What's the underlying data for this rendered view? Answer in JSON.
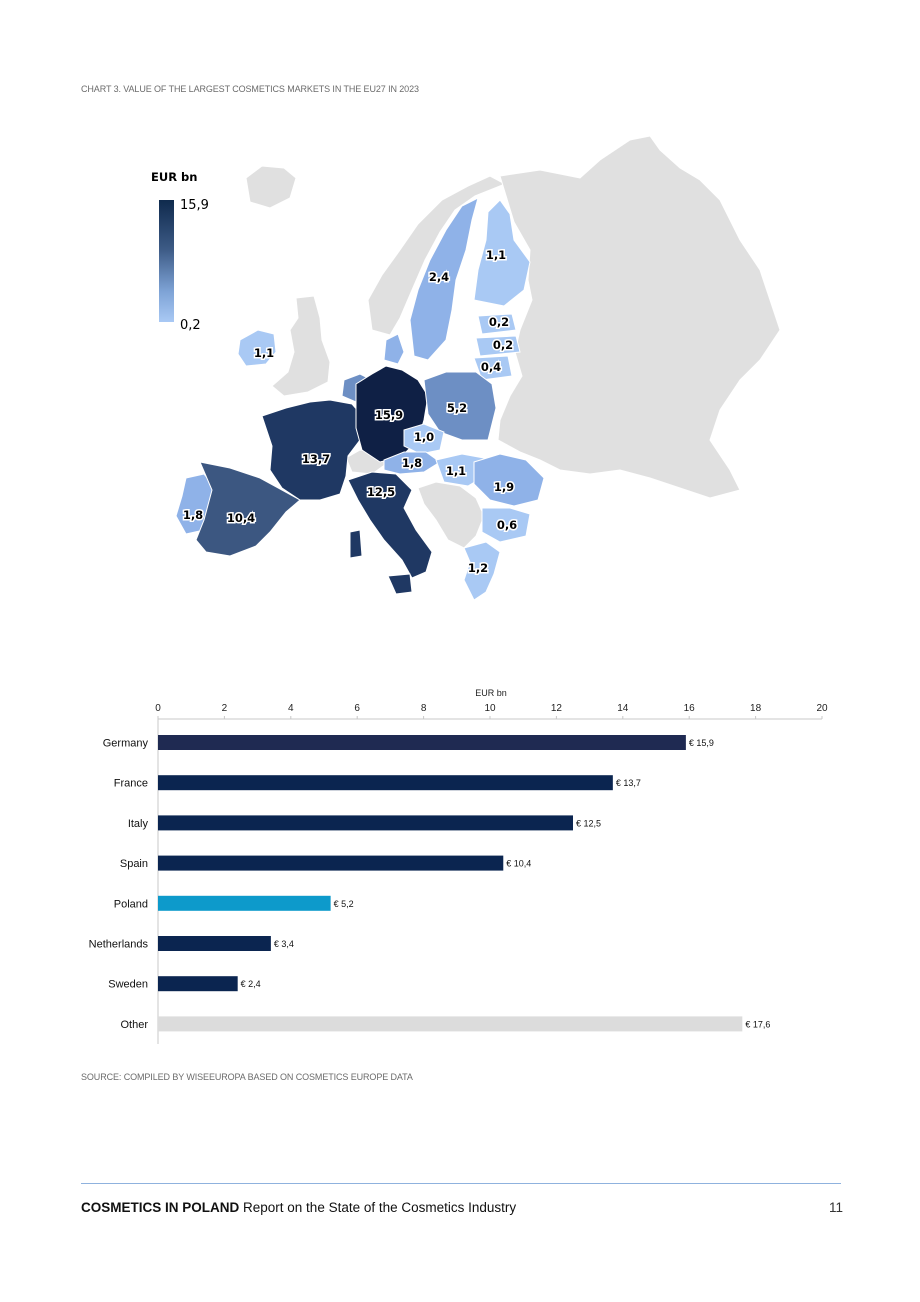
{
  "chart_caption": "CHART 3. VALUE OF THE LARGEST COSMETICS MARKETS IN THE EU27 IN 2023",
  "map": {
    "legend_title": "EUR bn",
    "legend_max": "15,9",
    "legend_min": "0,2",
    "colors": {
      "non_eu": "#e0e0e0",
      "scale_max": "#0f2a4d",
      "scale_min": "#a9c9f4"
    },
    "labels": [
      {
        "country": "Germany",
        "value": "15,9"
      },
      {
        "country": "France",
        "value": "13,7"
      },
      {
        "country": "Italy",
        "value": "12,5"
      },
      {
        "country": "Spain",
        "value": "10,4"
      },
      {
        "country": "Poland",
        "value": "5,2"
      },
      {
        "country": "Sweden",
        "value": "2,4"
      },
      {
        "country": "Romania",
        "value": "1,9"
      },
      {
        "country": "Austria",
        "value": "1,8"
      },
      {
        "country": "Portugal",
        "value": "1,8"
      },
      {
        "country": "Greece",
        "value": "1,2"
      },
      {
        "country": "Finland",
        "value": "1,1"
      },
      {
        "country": "Ireland",
        "value": "1,1"
      },
      {
        "country": "Hungary",
        "value": "1,1"
      },
      {
        "country": "Czechia",
        "value": "1,0"
      },
      {
        "country": "Bulgaria",
        "value": "0,6"
      },
      {
        "country": "Lithuania",
        "value": "0,4"
      },
      {
        "country": "Estonia",
        "value": "0,2"
      },
      {
        "country": "Latvia",
        "value": "0,2"
      }
    ]
  },
  "chart_data": {
    "type": "bar",
    "orientation": "horizontal",
    "title": "",
    "xlabel": "EUR bn",
    "ylabel": "",
    "xlim": [
      0,
      20
    ],
    "ticks": [
      0,
      2,
      4,
      6,
      8,
      10,
      12,
      14,
      16,
      18,
      20
    ],
    "grid": false,
    "categories": [
      "Germany",
      "France",
      "Italy",
      "Spain",
      "Poland",
      "Netherlands",
      "Sweden",
      "Other"
    ],
    "values": [
      15.9,
      13.7,
      12.5,
      10.4,
      5.2,
      3.4,
      2.4,
      17.6
    ],
    "value_labels": [
      "€ 15,9",
      "€ 13,7",
      "€ 12,5",
      "€ 10,4",
      "€ 5,2",
      "€ 3,4",
      "€ 2,4",
      "€ 17,6"
    ],
    "bar_colors": [
      "#1f2a52",
      "#0b2550",
      "#0b2550",
      "#0b2550",
      "#0d9acb",
      "#0b2550",
      "#0b2550",
      "#dcdcdc"
    ]
  },
  "source": "SOURCE: COMPILED BY WISEEUROPA BASED ON COSMETICS EUROPE DATA",
  "footer": {
    "brand": "COSMETICS IN POLAND",
    "subtitle": " Report on the State of the Cosmetics Industry",
    "page_number": "11"
  }
}
